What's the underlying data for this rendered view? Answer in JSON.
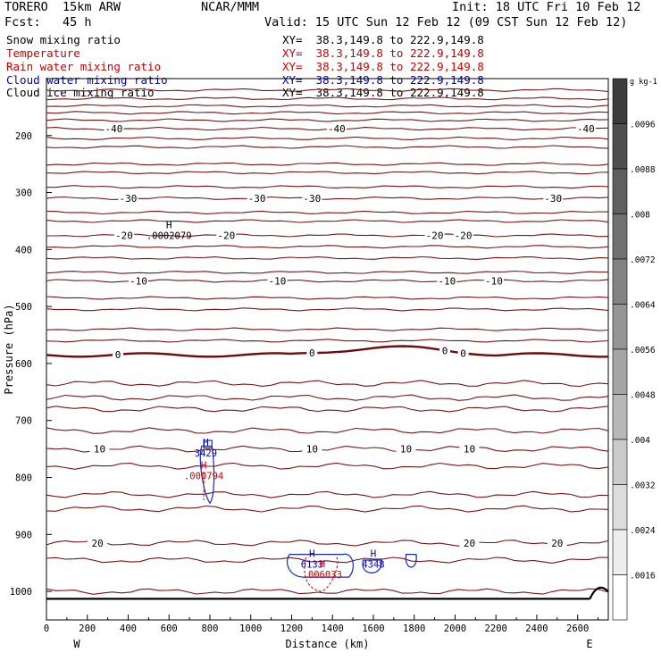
{
  "header": {
    "model": "TORERO  15km ARW",
    "org": "NCAR/MMM",
    "init": "Init: 18 UTC Fri 10 Feb 12",
    "fcst": "Fcst:   45 h",
    "valid": "Valid: 15 UTC Sun 12 Feb 12 (09 CST Sun 12 Feb 12)"
  },
  "fields": [
    {
      "name": "Snow mixing ratio",
      "xy": "XY=  38.3,149.8 to 222.9,149.8",
      "color": "#000000"
    },
    {
      "name": "Temperature",
      "xy": "XY=  38.3,149.8 to 222.9,149.8",
      "color": "#cc0000"
    },
    {
      "name": "Rain water mixing ratio",
      "xy": "XY=  38.3,149.8 to 222.9,149.8",
      "color": "#cc0000"
    },
    {
      "name": "Cloud water mixing ratio",
      "xy": "XY=  38.3,149.8 to 222.9,149.8",
      "color": "#0000cc"
    },
    {
      "name": "Cloud ice mixing ratio",
      "xy": "XY=  38.3,149.8 to 222.9,149.8",
      "color": "#000000"
    }
  ],
  "chart_data": {
    "type": "cross-section",
    "xlabel": "Distance (km)",
    "ylabel": "Pressure (hPa)",
    "xlim": [
      0,
      2750
    ],
    "ylim": [
      1050,
      100
    ],
    "x_ticks": [
      0,
      200,
      400,
      600,
      800,
      1000,
      1200,
      1400,
      1600,
      1800,
      2000,
      2200,
      2400,
      2600
    ],
    "y_ticks": [
      200,
      300,
      400,
      500,
      600,
      700,
      800,
      900,
      1000
    ],
    "left_end": "W",
    "right_end": "E",
    "colorbar": {
      "units_label": "g kg-1",
      "ticks": [
        ".0096",
        ".0088",
        ".008",
        ".0072",
        ".0064",
        ".0056",
        ".0048",
        ".004",
        ".0032",
        ".0024",
        ".0016"
      ]
    },
    "isotherms": [
      {
        "p": 120,
        "label": null
      },
      {
        "p": 135,
        "label": null
      },
      {
        "p": 148,
        "label": null
      },
      {
        "p": 160,
        "label": null
      },
      {
        "p": 173,
        "label": null
      },
      {
        "p": 188,
        "label": "-40",
        "label_x": [
          330,
          1420,
          2640
        ]
      },
      {
        "p": 205,
        "label": null
      },
      {
        "p": 220,
        "label": null
      },
      {
        "p": 250,
        "label": null
      },
      {
        "p": 265,
        "label": null
      },
      {
        "p": 290,
        "label": null
      },
      {
        "p": 310,
        "label": "-30",
        "label_x": [
          400,
          1030,
          1300,
          2480
        ]
      },
      {
        "p": 335,
        "label": null
      },
      {
        "p": 350,
        "label": null
      },
      {
        "p": 375,
        "label": "-20",
        "label_x": [
          380,
          880,
          1900,
          2040
        ]
      },
      {
        "p": 395,
        "label": null
      },
      {
        "p": 415,
        "label": null
      },
      {
        "p": 440,
        "label": null
      },
      {
        "p": 455,
        "label": "-10",
        "label_x": [
          450,
          1130,
          1960,
          2190
        ]
      },
      {
        "p": 485,
        "label": null
      },
      {
        "p": 505,
        "label": null
      },
      {
        "p": 540,
        "label": null
      },
      {
        "p": 560,
        "label": null
      },
      {
        "p": 635,
        "label": null
      },
      {
        "p": 660,
        "label": null
      },
      {
        "p": 680,
        "label": null
      },
      {
        "p": 718,
        "label": null
      },
      {
        "p": 750,
        "label": "10",
        "label_x": [
          260,
          1300,
          1760,
          2070
        ]
      },
      {
        "p": 780,
        "label": null
      },
      {
        "p": 830,
        "label": null
      },
      {
        "p": 855,
        "label": null
      },
      {
        "p": 915,
        "label": "20",
        "label_x": [
          250,
          2070,
          2500
        ]
      },
      {
        "p": 945,
        "label": null
      },
      {
        "p": 1000,
        "label": null
      }
    ],
    "freezing_level": {
      "p": 585,
      "label": "0",
      "label_x": [
        350,
        1300,
        1950,
        2040
      ]
    },
    "maxima": [
      {
        "x": 600,
        "p": 378,
        "value": ".0002079",
        "color": "#000000"
      },
      {
        "x": 780,
        "p": 760,
        "value": "3429",
        "color": "#0000cc"
      },
      {
        "x": 770,
        "p": 800,
        "value": ".000794",
        "color": "#cc0000"
      },
      {
        "x": 1300,
        "p": 955,
        "value": "6133",
        "color": "#0000cc"
      },
      {
        "x": 1350,
        "p": 973,
        "value": ".006033",
        "color": "#cc0000"
      },
      {
        "x": 1600,
        "p": 955,
        "value": "4348",
        "color": "#0000cc"
      }
    ]
  }
}
